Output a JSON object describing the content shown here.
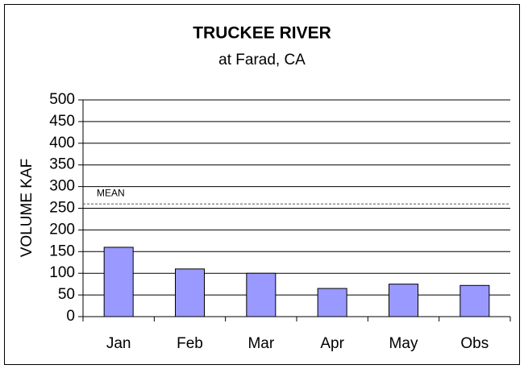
{
  "chart_data": {
    "type": "bar",
    "title": "TRUCKEE RIVER",
    "subtitle": "at Farad, CA",
    "y_label": "VOLUME KAF",
    "categories": [
      "Jan",
      "Feb",
      "Mar",
      "Apr",
      "May",
      "Obs"
    ],
    "values": [
      160,
      110,
      100,
      65,
      75,
      72
    ],
    "color": "#9999ff",
    "ylim": [
      0,
      500
    ],
    "yticks": [
      0,
      50,
      100,
      150,
      200,
      250,
      300,
      350,
      400,
      450,
      500
    ],
    "grid": true,
    "mean": 260,
    "mean_label": "MEAN"
  }
}
